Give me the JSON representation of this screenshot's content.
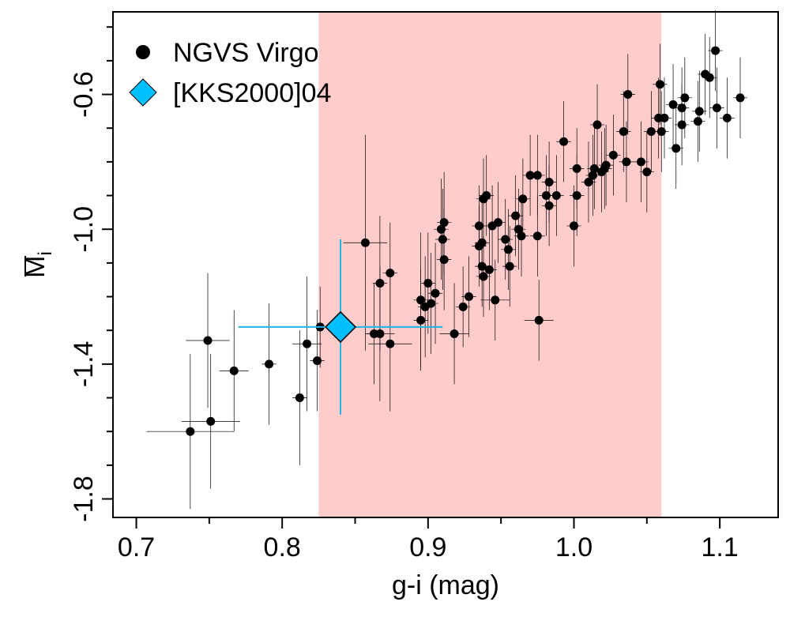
{
  "chart_data": {
    "type": "scatter",
    "title": "",
    "xlabel": "g-i (mag)",
    "ylabel": "M",
    "ylabel_subscript": "i",
    "xlim": [
      0.684,
      1.14
    ],
    "ylim": [
      -1.855,
      -0.355
    ],
    "grid": false,
    "legend_position": "top-left",
    "x_ticks": [
      {
        "value": 0.7,
        "label": "0.7"
      },
      {
        "value": 0.8,
        "label": "0.8"
      },
      {
        "value": 0.9,
        "label": "0.9"
      },
      {
        "value": 1.0,
        "label": "1.0"
      },
      {
        "value": 1.1,
        "label": "1.1"
      }
    ],
    "x_minor_ticks": [
      0.75,
      0.85,
      0.95,
      1.05
    ],
    "y_ticks": [
      {
        "value": -0.6,
        "label": "-0.6"
      },
      {
        "value": -1.0,
        "label": "-1.0"
      },
      {
        "value": -1.4,
        "label": "-1.4"
      },
      {
        "value": -1.8,
        "label": "-1.8"
      }
    ],
    "y_minor_ticks": [
      -0.4,
      -0.5,
      -0.7,
      -0.8,
      -0.9,
      -1.1,
      -1.2,
      -1.3,
      -1.5,
      -1.6,
      -1.7
    ],
    "shaded_region": {
      "x_range": [
        0.825,
        1.06
      ],
      "color": "#ffcccc"
    },
    "series": [
      {
        "name": "NGVS Virgo",
        "marker": "circle",
        "color": "#000000",
        "points": [
          {
            "x": 0.737,
            "y": -1.6,
            "xerr": 0.03,
            "yerr": 0.23
          },
          {
            "x": 0.749,
            "y": -1.33,
            "xerr": 0.015,
            "yerr": 0.2
          },
          {
            "x": 0.751,
            "y": -1.57,
            "xerr": 0.02,
            "yerr": 0.2
          },
          {
            "x": 0.767,
            "y": -1.42,
            "xerr": 0.01,
            "yerr": 0.18
          },
          {
            "x": 0.791,
            "y": -1.4,
            "xerr": 0.005,
            "yerr": 0.18
          },
          {
            "x": 0.812,
            "y": -1.5,
            "xerr": 0.005,
            "yerr": 0.2
          },
          {
            "x": 0.817,
            "y": -1.34,
            "xerr": 0.01,
            "yerr": 0.2
          },
          {
            "x": 0.824,
            "y": -1.39,
            "xerr": 0.005,
            "yerr": 0.15
          },
          {
            "x": 0.826,
            "y": -1.29,
            "xerr": 0.005,
            "yerr": 0.12
          },
          {
            "x": 0.857,
            "y": -1.04,
            "xerr": 0.015,
            "yerr": 0.32
          },
          {
            "x": 0.863,
            "y": -1.31,
            "xerr": 0.005,
            "yerr": 0.15
          },
          {
            "x": 0.867,
            "y": -1.31,
            "xerr": 0.01,
            "yerr": 0.2
          },
          {
            "x": 0.867,
            "y": -1.16,
            "xerr": 0.005,
            "yerr": 0.2
          },
          {
            "x": 0.874,
            "y": -1.34,
            "xerr": 0.015,
            "yerr": 0.2
          },
          {
            "x": 0.874,
            "y": -1.13,
            "xerr": 0.005,
            "yerr": 0.15
          },
          {
            "x": 0.895,
            "y": -1.21,
            "xerr": 0.005,
            "yerr": 0.2
          },
          {
            "x": 0.895,
            "y": -1.27,
            "xerr": 0.005,
            "yerr": 0.15
          },
          {
            "x": 0.898,
            "y": -1.23,
            "xerr": 0.005,
            "yerr": 0.15
          },
          {
            "x": 0.9,
            "y": -1.16,
            "xerr": 0.005,
            "yerr": 0.15
          },
          {
            "x": 0.902,
            "y": -1.22,
            "xerr": 0.005,
            "yerr": 0.15
          },
          {
            "x": 0.905,
            "y": -1.19,
            "xerr": 0.005,
            "yerr": 0.15
          },
          {
            "x": 0.909,
            "y": -1.0,
            "xerr": 0.005,
            "yerr": 0.15
          },
          {
            "x": 0.91,
            "y": -1.03,
            "xerr": 0.005,
            "yerr": 0.15
          },
          {
            "x": 0.911,
            "y": -0.98,
            "xerr": 0.005,
            "yerr": 0.15
          },
          {
            "x": 0.911,
            "y": -1.09,
            "xerr": 0.005,
            "yerr": 0.15
          },
          {
            "x": 0.918,
            "y": -1.31,
            "xerr": 0.01,
            "yerr": 0.15
          },
          {
            "x": 0.924,
            "y": -1.23,
            "xerr": 0.005,
            "yerr": 0.12
          },
          {
            "x": 0.928,
            "y": -1.2,
            "xerr": 0.005,
            "yerr": 0.12
          },
          {
            "x": 0.935,
            "y": -0.99,
            "xerr": 0.005,
            "yerr": 0.12
          },
          {
            "x": 0.935,
            "y": -1.05,
            "xerr": 0.005,
            "yerr": 0.12
          },
          {
            "x": 0.937,
            "y": -1.11,
            "xerr": 0.005,
            "yerr": 0.12
          },
          {
            "x": 0.937,
            "y": -1.04,
            "xerr": 0.005,
            "yerr": 0.12
          },
          {
            "x": 0.938,
            "y": -1.14,
            "xerr": 0.005,
            "yerr": 0.12
          },
          {
            "x": 0.938,
            "y": -0.91,
            "xerr": 0.005,
            "yerr": 0.12
          },
          {
            "x": 0.94,
            "y": -0.9,
            "xerr": 0.005,
            "yerr": 0.12
          },
          {
            "x": 0.942,
            "y": -1.12,
            "xerr": 0.005,
            "yerr": 0.12
          },
          {
            "x": 0.944,
            "y": -0.99,
            "xerr": 0.005,
            "yerr": 0.12
          },
          {
            "x": 0.946,
            "y": -1.21,
            "xerr": 0.01,
            "yerr": 0.12
          },
          {
            "x": 0.948,
            "y": -0.98,
            "xerr": 0.005,
            "yerr": 0.12
          },
          {
            "x": 0.953,
            "y": -1.03,
            "xerr": 0.005,
            "yerr": 0.12
          },
          {
            "x": 0.955,
            "y": -1.06,
            "xerr": 0.005,
            "yerr": 0.12
          },
          {
            "x": 0.956,
            "y": -1.11,
            "xerr": 0.005,
            "yerr": 0.12
          },
          {
            "x": 0.96,
            "y": -0.96,
            "xerr": 0.005,
            "yerr": 0.12
          },
          {
            "x": 0.962,
            "y": -1.0,
            "xerr": 0.005,
            "yerr": 0.12
          },
          {
            "x": 0.964,
            "y": -1.02,
            "xerr": 0.005,
            "yerr": 0.12
          },
          {
            "x": 0.965,
            "y": -0.91,
            "xerr": 0.005,
            "yerr": 0.12
          },
          {
            "x": 0.97,
            "y": -0.84,
            "xerr": 0.005,
            "yerr": 0.12
          },
          {
            "x": 0.975,
            "y": -0.84,
            "xerr": 0.005,
            "yerr": 0.12
          },
          {
            "x": 0.975,
            "y": -1.02,
            "xerr": 0.005,
            "yerr": 0.12
          },
          {
            "x": 0.976,
            "y": -1.27,
            "xerr": 0.01,
            "yerr": 0.12
          },
          {
            "x": 0.981,
            "y": -0.9,
            "xerr": 0.005,
            "yerr": 0.12
          },
          {
            "x": 0.983,
            "y": -0.93,
            "xerr": 0.005,
            "yerr": 0.12
          },
          {
            "x": 0.983,
            "y": -0.86,
            "xerr": 0.005,
            "yerr": 0.12
          },
          {
            "x": 0.988,
            "y": -0.9,
            "xerr": 0.005,
            "yerr": 0.12
          },
          {
            "x": 0.993,
            "y": -0.74,
            "xerr": 0.005,
            "yerr": 0.12
          },
          {
            "x": 1.0,
            "y": -0.99,
            "xerr": 0.005,
            "yerr": 0.12
          },
          {
            "x": 1.002,
            "y": -0.82,
            "xerr": 0.005,
            "yerr": 0.12
          },
          {
            "x": 1.002,
            "y": -0.9,
            "xerr": 0.005,
            "yerr": 0.12
          },
          {
            "x": 1.01,
            "y": -0.86,
            "xerr": 0.005,
            "yerr": 0.12
          },
          {
            "x": 1.013,
            "y": -0.84,
            "xerr": 0.005,
            "yerr": 0.12
          },
          {
            "x": 1.014,
            "y": -0.82,
            "xerr": 0.005,
            "yerr": 0.12
          },
          {
            "x": 1.016,
            "y": -0.69,
            "xerr": 0.005,
            "yerr": 0.12
          },
          {
            "x": 1.019,
            "y": -0.83,
            "xerr": 0.005,
            "yerr": 0.12
          },
          {
            "x": 1.021,
            "y": -0.82,
            "xerr": 0.005,
            "yerr": 0.12
          },
          {
            "x": 1.022,
            "y": -0.81,
            "xerr": 0.005,
            "yerr": 0.12
          },
          {
            "x": 1.027,
            "y": -0.78,
            "xerr": 0.005,
            "yerr": 0.12
          },
          {
            "x": 1.034,
            "y": -0.71,
            "xerr": 0.005,
            "yerr": 0.12
          },
          {
            "x": 1.036,
            "y": -0.8,
            "xerr": 0.005,
            "yerr": 0.12
          },
          {
            "x": 1.037,
            "y": -0.6,
            "xerr": 0.005,
            "yerr": 0.12
          },
          {
            "x": 1.046,
            "y": -0.8,
            "xerr": 0.005,
            "yerr": 0.12
          },
          {
            "x": 1.05,
            "y": -0.83,
            "xerr": 0.005,
            "yerr": 0.12
          },
          {
            "x": 1.053,
            "y": -0.71,
            "xerr": 0.005,
            "yerr": 0.12
          },
          {
            "x": 1.058,
            "y": -0.67,
            "xerr": 0.005,
            "yerr": 0.12
          },
          {
            "x": 1.059,
            "y": -0.57,
            "xerr": 0.005,
            "yerr": 0.12
          },
          {
            "x": 1.06,
            "y": -0.71,
            "xerr": 0.005,
            "yerr": 0.12
          },
          {
            "x": 1.062,
            "y": -0.67,
            "xerr": 0.005,
            "yerr": 0.12
          },
          {
            "x": 1.068,
            "y": -0.63,
            "xerr": 0.005,
            "yerr": 0.12
          },
          {
            "x": 1.07,
            "y": -0.76,
            "xerr": 0.005,
            "yerr": 0.12
          },
          {
            "x": 1.074,
            "y": -0.64,
            "xerr": 0.005,
            "yerr": 0.12
          },
          {
            "x": 1.074,
            "y": -0.69,
            "xerr": 0.005,
            "yerr": 0.12
          },
          {
            "x": 1.076,
            "y": -0.61,
            "xerr": 0.005,
            "yerr": 0.12
          },
          {
            "x": 1.085,
            "y": -0.68,
            "xerr": 0.005,
            "yerr": 0.12
          },
          {
            "x": 1.086,
            "y": -0.65,
            "xerr": 0.005,
            "yerr": 0.12
          },
          {
            "x": 1.09,
            "y": -0.54,
            "xerr": 0.005,
            "yerr": 0.12
          },
          {
            "x": 1.093,
            "y": -0.55,
            "xerr": 0.005,
            "yerr": 0.12
          },
          {
            "x": 1.097,
            "y": -0.47,
            "xerr": 0.005,
            "yerr": 0.12
          },
          {
            "x": 1.098,
            "y": -0.64,
            "xerr": 0.005,
            "yerr": 0.12
          },
          {
            "x": 1.105,
            "y": -0.67,
            "xerr": 0.005,
            "yerr": 0.12
          },
          {
            "x": 1.114,
            "y": -0.61,
            "xerr": 0.005,
            "yerr": 0.12
          }
        ]
      },
      {
        "name": "[KKS2000]04",
        "marker": "diamond",
        "color": "#00bfff",
        "error_color": "#1fb4e6",
        "points": [
          {
            "x": 0.84,
            "y": -1.29,
            "xerr": 0.07,
            "yerr": 0.26
          }
        ]
      }
    ]
  }
}
